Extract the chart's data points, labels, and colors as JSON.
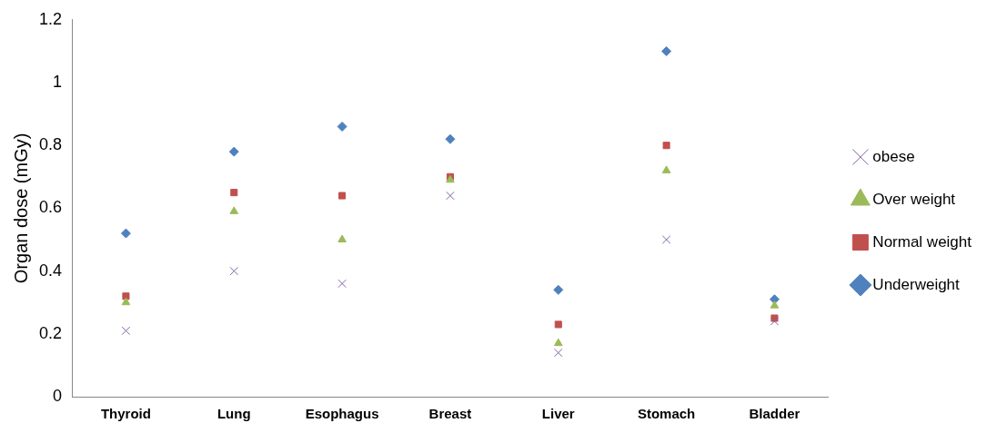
{
  "chart_data": {
    "type": "scatter",
    "ylabel": "Organ dose (mGy)",
    "categories": [
      "Thyroid",
      "Lung",
      "Esophagus",
      "Breast",
      "Liver",
      "Stomach",
      "Bladder"
    ],
    "ylim": [
      0,
      1.2
    ],
    "yticks": [
      0,
      0.2,
      0.4,
      0.6,
      0.8,
      1,
      1.2
    ],
    "grid": false,
    "legend": "right",
    "series": [
      {
        "name": "obese",
        "color": "#8064a2",
        "marker": "cross",
        "values": [
          0.21,
          0.4,
          0.36,
          0.64,
          0.14,
          0.5,
          0.24
        ]
      },
      {
        "name": "Over weight",
        "color": "#9bbb59",
        "marker": "triangle",
        "values": [
          0.3,
          0.59,
          0.5,
          0.69,
          0.17,
          0.72,
          0.29
        ]
      },
      {
        "name": "Normal weight",
        "color": "#c0504d",
        "marker": "square",
        "values": [
          0.32,
          0.65,
          0.64,
          0.7,
          0.23,
          0.8,
          0.25
        ]
      },
      {
        "name": "Underweight",
        "color": "#4f81bd",
        "marker": "diamond",
        "values": [
          0.52,
          0.78,
          0.86,
          0.82,
          0.34,
          1.1,
          0.31
        ]
      }
    ]
  }
}
